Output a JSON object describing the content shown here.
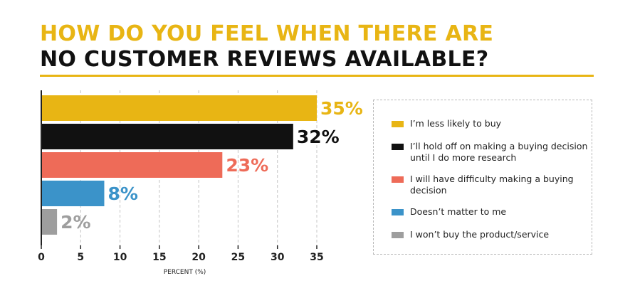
{
  "title": {
    "line1": "HOW DO YOU FEEL WHEN THERE ARE",
    "line2": "NO CUSTOMER REVIEWS AVAILABLE?"
  },
  "colors": {
    "accent": "#e8b514",
    "black": "#111111",
    "coral": "#ee6b58",
    "blue": "#3b93c9",
    "gray": "#9e9e9e"
  },
  "chart_data": {
    "type": "bar",
    "orientation": "horizontal",
    "categories": [
      "I’m less likely to buy",
      "I’ll hold off on making a buying decision until I do more research",
      "I will have difficulty making a buying decision",
      "Doesn’t matter to me",
      "I won’t buy the product/service"
    ],
    "values": [
      35,
      32,
      23,
      8,
      2
    ],
    "data_labels": [
      "35%",
      "32%",
      "23%",
      "8%",
      "2%"
    ],
    "bar_colors": [
      "#e8b514",
      "#111111",
      "#ee6b58",
      "#3b93c9",
      "#9e9e9e"
    ],
    "xlabel": "PERCENT (%)",
    "xlim": [
      0,
      35
    ],
    "xticks": [
      "0",
      "5",
      "10",
      "15",
      "20",
      "25",
      "30",
      "35"
    ],
    "grid": "vertical dashed",
    "legend_position": "right"
  }
}
